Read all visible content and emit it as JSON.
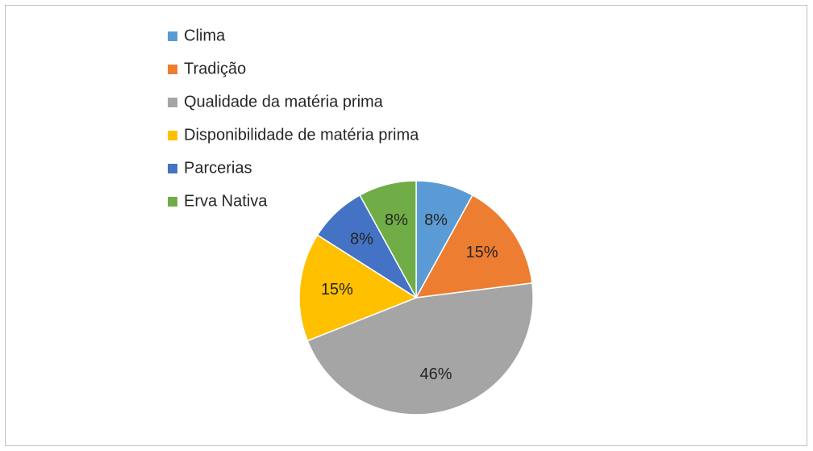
{
  "chart_data": {
    "type": "pie",
    "categories": [
      "Clima",
      "Tradição",
      "Qualidade da matéria prima",
      "Disponibilidade de matéria prima",
      "Parcerias",
      "Erva Nativa"
    ],
    "values": [
      8,
      15,
      46,
      15,
      8,
      8
    ],
    "value_labels": [
      "8%",
      "15%",
      "46%",
      "15%",
      "8%",
      "8%"
    ],
    "colors": [
      "#5b9bd5",
      "#ed7d31",
      "#a5a5a5",
      "#ffc000",
      "#4472c4",
      "#70ad47"
    ],
    "legend": "top-left"
  }
}
